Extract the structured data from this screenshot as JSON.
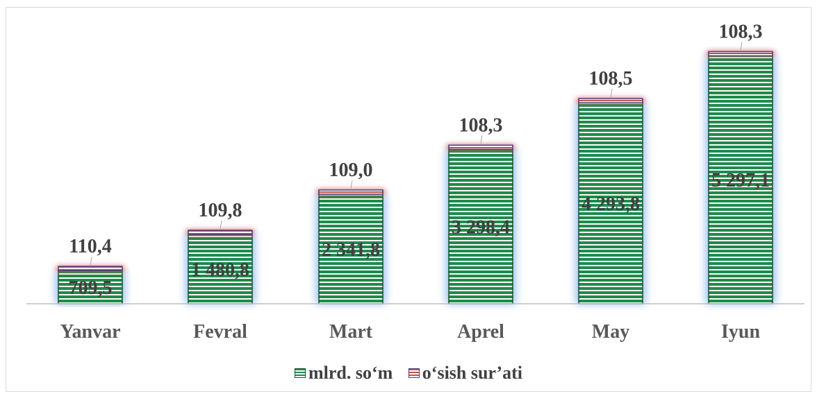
{
  "chart_data": {
    "type": "bar",
    "categories": [
      "Yanvar",
      "Fevral",
      "Mart",
      "Aprel",
      "May",
      "Iyun"
    ],
    "series": [
      {
        "name": "mlrd. so‘m",
        "values": [
          709.5,
          1480.8,
          2341.8,
          3298.4,
          4293.8,
          5297.1
        ],
        "labels": [
          "709,5",
          "1 480,8",
          "2 341,8",
          "3 298,4",
          "4 293,8",
          "5 297,1"
        ],
        "color": "#1f8a4c"
      },
      {
        "name": "o‘sish sur’ati",
        "values": [
          110.4,
          109.8,
          109.0,
          108.3,
          108.5,
          108.3
        ],
        "labels": [
          "110,4",
          "109,8",
          "109,0",
          "108,3",
          "108,5",
          "108,3"
        ],
        "color": "#c0504d"
      }
    ],
    "stacked": true,
    "title": "",
    "xlabel": "",
    "ylabel": "",
    "legend": "bottom",
    "grid": false
  }
}
